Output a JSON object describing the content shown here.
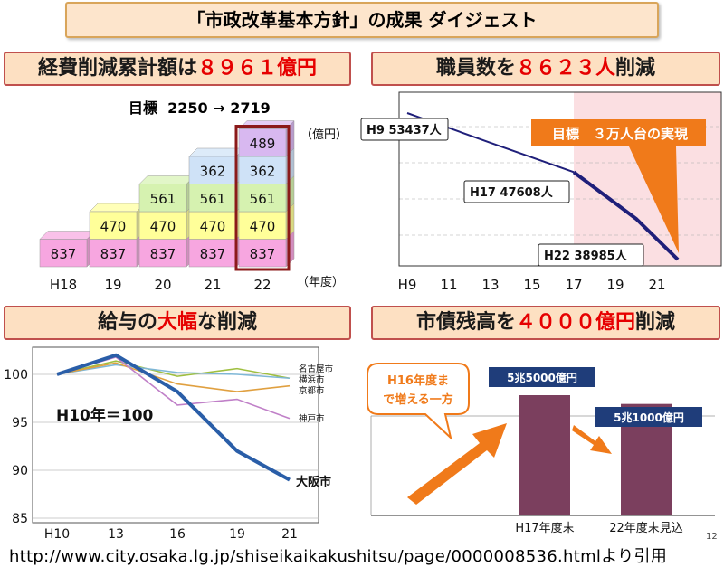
{
  "title": "「市政改革基本方針」の成果 ダイジェスト",
  "panel1": {
    "header_pre": "経費削減累計額は",
    "header_num": "８９６１億円",
    "target_label": "目標",
    "target_from": "2250",
    "target_to": "2719",
    "unit": "（億円）",
    "x_unit": "（年度）"
  },
  "panel2": {
    "header_pre": "職員数を",
    "header_num": "８６２３人",
    "header_post": "削減",
    "callout": "目標　３万人台の実現",
    "labels": [
      "H9  53437人",
      "H17  47608人",
      "H22  38985人"
    ]
  },
  "panel3": {
    "header_pre": "給与の",
    "header_red": "大幅",
    "header_post": "な削減",
    "base_note": "H10年＝100"
  },
  "panel4": {
    "header_pre": "市債残高を",
    "header_num": "４０００億円",
    "header_post": "削減",
    "callout": "H16年度まで増える一方"
  },
  "page_num": "12",
  "source": "http://www.city.osaka.lg.jp/shiseikaikakushitsu/page/0000008536.htmlより引用",
  "chart_data": [
    {
      "type": "bar",
      "stacked": true,
      "categories": [
        "H18",
        "19",
        "20",
        "21",
        "22"
      ],
      "series": [
        {
          "values": [
            837,
            837,
            837,
            837,
            837
          ],
          "color": "#f7a6e0"
        },
        {
          "values": [
            0,
            470,
            470,
            470,
            470
          ],
          "color": "#ffff99"
        },
        {
          "values": [
            0,
            0,
            561,
            561,
            561
          ],
          "color": "#d6f2b0"
        },
        {
          "values": [
            0,
            0,
            0,
            362,
            362
          ],
          "color": "#cfe2f7"
        },
        {
          "values": [
            0,
            0,
            0,
            0,
            489
          ],
          "color": "#d8b8f0"
        }
      ],
      "ylabel": "（億円）",
      "xlabel": "（年度）"
    },
    {
      "type": "line",
      "x": [
        "H9",
        "11",
        "13",
        "15",
        "17",
        "19",
        "21"
      ],
      "points": [
        {
          "x": 9,
          "y": 53437
        },
        {
          "x": 17,
          "y": 47608
        },
        {
          "x": 22,
          "y": 38985
        }
      ],
      "shaded_from": 17,
      "color": "#1f1f7a"
    },
    {
      "type": "line",
      "x": [
        "H10",
        "13",
        "16",
        "19",
        "21"
      ],
      "y_ticks": [
        100,
        95,
        90,
        85
      ],
      "ylim": [
        85,
        103
      ],
      "series": [
        {
          "name": "名古屋市",
          "color": "#9fbf3f",
          "values": [
            100,
            101.4,
            99.8,
            100.6,
            99.6
          ]
        },
        {
          "name": "横浜市",
          "color": "#7fb7d6",
          "values": [
            100,
            101.0,
            100.2,
            100.0,
            99.6
          ]
        },
        {
          "name": "京都市",
          "color": "#e0a040",
          "values": [
            100,
            101.2,
            99.0,
            98.2,
            98.8
          ]
        },
        {
          "name": "神戸市",
          "color": "#c080c8",
          "values": [
            100,
            101.8,
            96.8,
            97.4,
            95.4
          ]
        },
        {
          "name": "大阪市",
          "color": "#2a5ea8",
          "values": [
            100,
            102.0,
            98.2,
            92.0,
            89.0
          ]
        }
      ]
    },
    {
      "type": "bar",
      "categories": [
        "H17年度末",
        "22年度末見込"
      ],
      "values": [
        55000,
        51000
      ],
      "value_labels": [
        "5兆5000億円",
        "5兆1000億円"
      ],
      "color": "#7b3f5e"
    }
  ]
}
